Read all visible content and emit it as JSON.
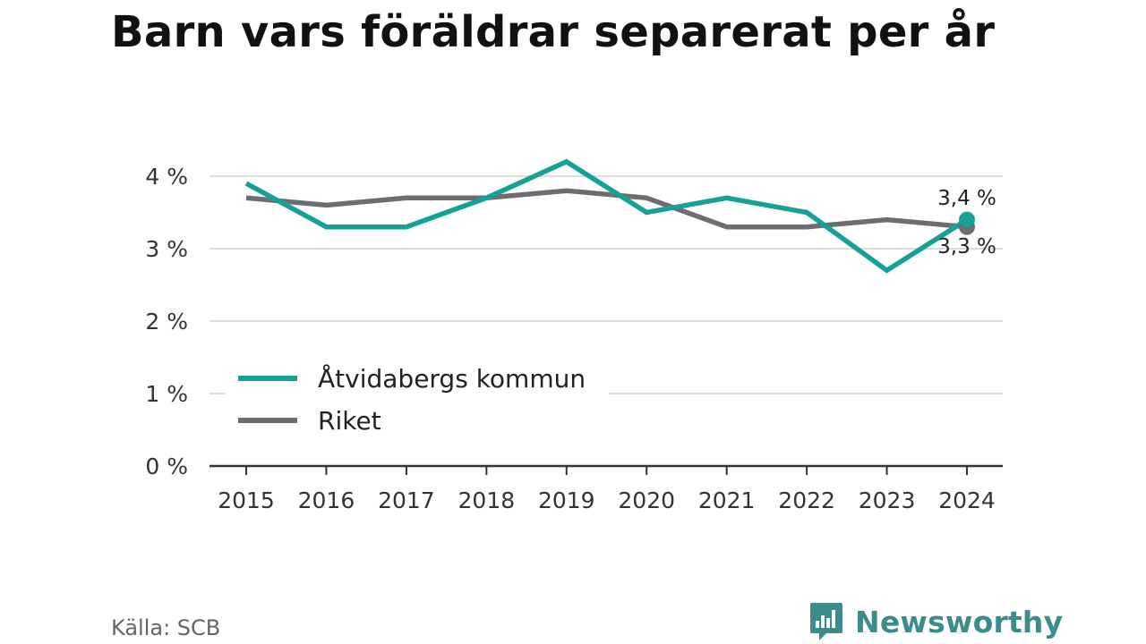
{
  "title": "Barn vars föräldrar separerat per år",
  "source": "Källa: SCB",
  "brand": {
    "name": "Newsworthy",
    "icon": "newsworthy-logo-icon",
    "color": "#3b8d8c"
  },
  "chart_data": {
    "type": "line",
    "title": "Barn vars föräldrar separerat per år",
    "xlabel": "",
    "ylabel": "",
    "ylim": [
      0,
      4
    ],
    "y_ticks": [
      {
        "value": 0,
        "label": "0 %"
      },
      {
        "value": 1,
        "label": "1 %"
      },
      {
        "value": 2,
        "label": "2 %"
      },
      {
        "value": 3,
        "label": "3 %"
      },
      {
        "value": 4,
        "label": "4 %"
      }
    ],
    "x": [
      "2015",
      "2016",
      "2017",
      "2018",
      "2019",
      "2020",
      "2021",
      "2022",
      "2023",
      "2024"
    ],
    "grid": true,
    "legend_position": "bottom-left",
    "series": [
      {
        "name": "Åtvidabergs kommun",
        "color": "#16a197",
        "values": [
          3.9,
          3.3,
          3.3,
          3.7,
          4.2,
          3.5,
          3.7,
          3.5,
          2.7,
          3.4
        ],
        "end_label": "3,4 %"
      },
      {
        "name": "Riket",
        "color": "#6d6c71",
        "values": [
          3.7,
          3.6,
          3.7,
          3.7,
          3.8,
          3.7,
          3.3,
          3.3,
          3.4,
          3.3
        ],
        "end_label": "3,3 %"
      }
    ]
  }
}
